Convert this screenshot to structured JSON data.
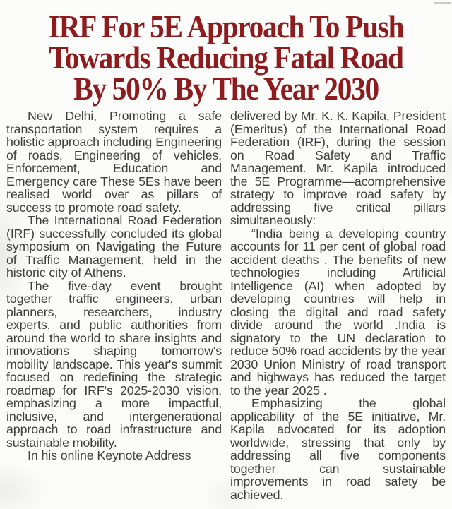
{
  "page": {
    "background_color": "#fcfcfa"
  },
  "headline": {
    "color": "#8e1b1e",
    "lines": [
      "IRF For 5E Approach To Push",
      "Towards Reducing Fatal Road",
      "By 50% By The Year 2030"
    ]
  },
  "article": {
    "text_color": "#3e3e40",
    "left_column": {
      "paragraphs": [
        "New Delhi, Promoting a safe transportation system requires a holistic approach including Engineering of roads, Engineering of vehicles, Enforcement, Education and Emergency care These 5Es have been realised world over as pillars of success to promote road safety.",
        "The International Road Federation (IRF) successfully concluded its global symposium on Navigating the Future of Traffic Management, held in the historic city of Athens.",
        "The five-day event brought together traffic engineers, urban planners, researchers, industry experts, and public authorities from around the world to share insights and innovations shaping tomorrow's mobility landscape. This year's summit focused on redefining the strategic roadmap for IRF's 2025-2030 vision, emphasizing a more impactful, inclusive, and intergenerational approach to road infrastructure and sustainable mobility.",
        "In his online Keynote Address"
      ]
    },
    "right_column": {
      "paragraphs": [
        "delivered by Mr. K. K. Kapila, President (Emeritus) of the International Road Federation (IRF), during the session on Road Safety and Traffic Management. Mr. Kapila introduced the 5E Programme—acomprehensive strategy to improve road safety by addressing five critical pillars simultaneously:",
        "“India being a developing country accounts for 11 per cent of global road accident deaths . The benefits of new technologies including Artificial Intelligence (AI) when adopted by developing countries will help in closing the digital and road safety divide around the world .India is signatory to the UN declaration to reduce 50% road accidents by the year 2030 Union Ministry of road transport and highways has reduced the target to the year 2025 .",
        "Emphasizing the global applicability of the 5E initiative, Mr. Kapila advocated for its adoption worldwide, stressing that only by addressing all five components together can sustainable improvements in road safety be achieved."
      ]
    }
  }
}
